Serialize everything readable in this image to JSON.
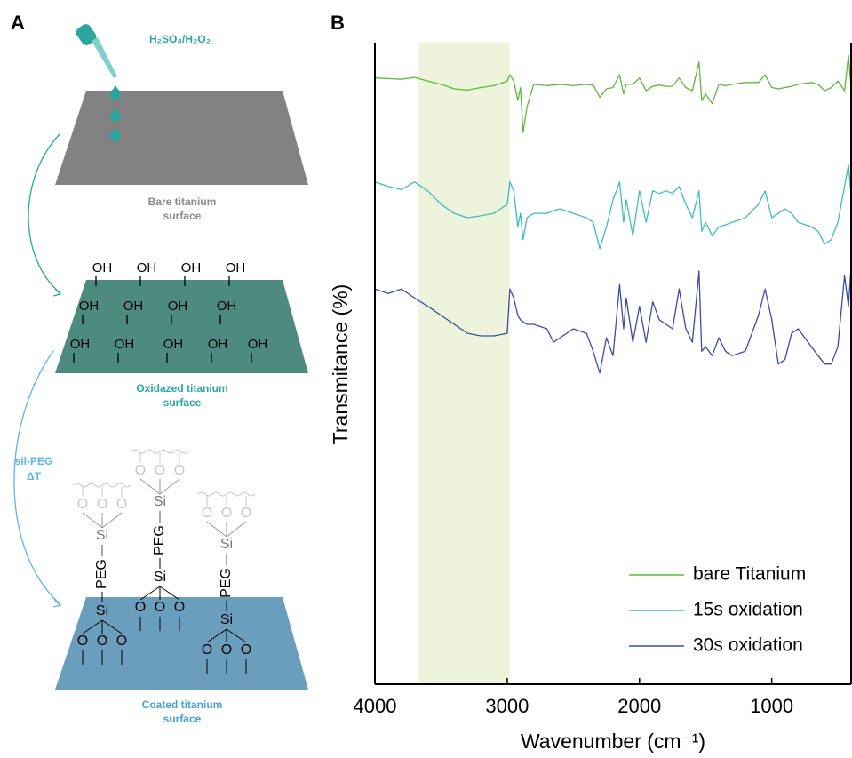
{
  "panel_a": {
    "label": "A",
    "reagent": "H₂SO₄/H₂O₂",
    "bare_caption": [
      "Bare titanium",
      "surface"
    ],
    "oxidized_caption": [
      "Oxidazed titanium",
      "surface"
    ],
    "treatment": [
      "sil-PEG",
      "ΔT"
    ],
    "coated_caption": [
      "Coated titanium",
      "surface"
    ],
    "oh_labels": [
      "OH",
      "OH",
      "OH",
      "OH",
      "OH",
      "OH",
      "OH",
      "OH",
      "OH",
      "OH",
      "OH",
      "OH",
      "OH"
    ],
    "silicon": "Si",
    "peg": "PEG",
    "oxygen": "O"
  },
  "chart_data": {
    "type": "line",
    "panel_label": "B",
    "xlabel": "Wavenumber (cm⁻¹)",
    "ylabel": "Transmitance (%)",
    "xlim": [
      4000,
      400
    ],
    "xticks": [
      4000,
      3000,
      2000,
      1000
    ],
    "ylim": [
      0,
      100
    ],
    "highlight_band": [
      3670,
      2980
    ],
    "highlight_color": "#eef4dc",
    "legend": "lower right",
    "x": [
      4000,
      3900,
      3800,
      3700,
      3600,
      3500,
      3400,
      3300,
      3200,
      3100,
      3000,
      2980,
      2950,
      2920,
      2900,
      2880,
      2850,
      2800,
      2700,
      2650,
      2600,
      2500,
      2400,
      2350,
      2300,
      2250,
      2200,
      2150,
      2120,
      2100,
      2050,
      2000,
      1950,
      1900,
      1850,
      1800,
      1750,
      1700,
      1650,
      1600,
      1550,
      1530,
      1500,
      1450,
      1400,
      1350,
      1300,
      1200,
      1100,
      1050,
      1000,
      950,
      900,
      850,
      800,
      700,
      650,
      600,
      550,
      500,
      450,
      420,
      400
    ],
    "series": [
      {
        "name": "bare Titanium",
        "color": "#5cb83a",
        "values": [
          94.5,
          94.4,
          94.3,
          94.6,
          94.0,
          93.5,
          92.8,
          92.6,
          93.0,
          93.3,
          94.0,
          95.0,
          94.0,
          91.0,
          93.0,
          86.0,
          90.0,
          93.5,
          93.3,
          93.4,
          93.5,
          93.3,
          93.5,
          93.4,
          91.5,
          92.8,
          93.0,
          95.0,
          92.0,
          93.5,
          93.5,
          94.5,
          92.5,
          93.2,
          93.4,
          93.2,
          93.2,
          94.5,
          93.0,
          92.5,
          97.0,
          91.0,
          92.0,
          90.5,
          93.5,
          93.3,
          93.5,
          93.8,
          93.8,
          95.0,
          93.0,
          92.8,
          93.0,
          93.2,
          93.5,
          93.8,
          93.5,
          92.5,
          93.0,
          94.0,
          92.5,
          98.0,
          93.0
        ]
      },
      {
        "name": "15s oxidation",
        "color": "#3dbdbd",
        "values": [
          78.3,
          77.6,
          77.1,
          78.3,
          76.9,
          74.8,
          73.4,
          72.7,
          73.0,
          73.4,
          74.8,
          78.3,
          76.9,
          71.3,
          73.4,
          69.3,
          72.7,
          73.4,
          73.4,
          73.8,
          74.1,
          73.4,
          72.7,
          72.0,
          67.9,
          71.3,
          75.5,
          78.3,
          72.0,
          75.5,
          69.9,
          76.9,
          72.0,
          76.9,
          76.5,
          76.9,
          76.5,
          77.6,
          74.8,
          72.7,
          76.9,
          70.6,
          72.0,
          69.9,
          71.3,
          71.6,
          72.0,
          72.7,
          74.8,
          76.9,
          72.7,
          73.4,
          74.1,
          73.4,
          72.0,
          71.3,
          70.6,
          68.6,
          69.3,
          72.0,
          77.6,
          81.0,
          76.2
        ]
      },
      {
        "name": "30s oxidation",
        "color": "#3b4ca8",
        "values": [
          61.6,
          60.9,
          61.6,
          60.2,
          58.9,
          57.5,
          56.1,
          54.7,
          54.3,
          54.3,
          54.7,
          61.6,
          60.2,
          57.5,
          56.8,
          56.5,
          56.1,
          56.1,
          55.4,
          53.3,
          54.0,
          55.4,
          54.7,
          51.9,
          48.5,
          54.0,
          51.2,
          62.3,
          55.4,
          60.2,
          53.3,
          58.9,
          53.3,
          59.6,
          56.8,
          56.1,
          55.4,
          61.6,
          55.4,
          53.3,
          64.4,
          51.9,
          52.6,
          51.2,
          54.0,
          51.9,
          51.2,
          51.9,
          57.5,
          61.6,
          56.8,
          49.9,
          50.6,
          54.7,
          55.4,
          52.6,
          51.2,
          49.9,
          49.9,
          52.6,
          63.7,
          58.9,
          65.1
        ]
      }
    ]
  }
}
